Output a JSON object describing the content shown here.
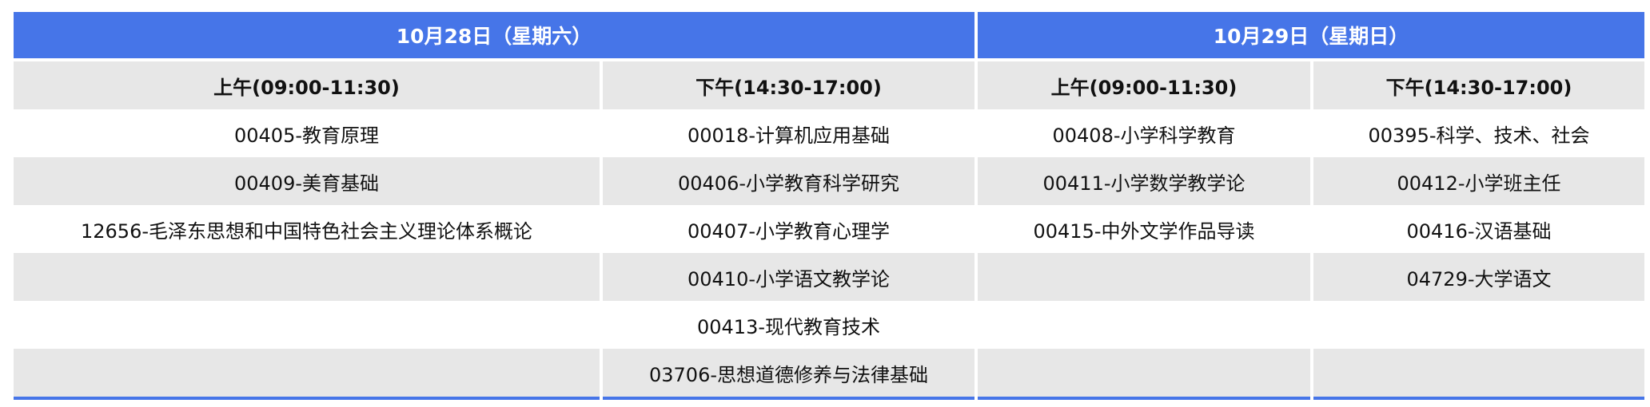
{
  "days": [
    {
      "label": "10月28日（星期六）",
      "slots": [
        "上午(09:00-11:30)",
        "下午(14:30-17:00)"
      ]
    },
    {
      "label": "10月29日（星期日）",
      "slots": [
        "上午(09:00-11:30)",
        "下午(14:30-17:00)"
      ]
    }
  ],
  "rows": [
    [
      "00405-教育原理",
      "00018-计算机应用基础",
      "00408-小学科学教育",
      "00395-科学、技术、社会"
    ],
    [
      "00409-美育基础",
      "00406-小学教育科学研究",
      "00411-小学数学教学论",
      "00412-小学班主任"
    ],
    [
      "12656-毛泽东思想和中国特色社会主义理论体系概论",
      "00407-小学教育心理学",
      "00415-中外文学作品导读",
      "00416-汉语基础"
    ],
    [
      "",
      "00410-小学语文教学论",
      "",
      "04729-大学语文"
    ],
    [
      "",
      "00413-现代教育技术",
      "",
      ""
    ],
    [
      "",
      "03706-思想道德修养与法律基础",
      "",
      ""
    ]
  ],
  "colors": {
    "header_blue": "#4675e8",
    "stripe_gray": "#e7e7e7"
  }
}
